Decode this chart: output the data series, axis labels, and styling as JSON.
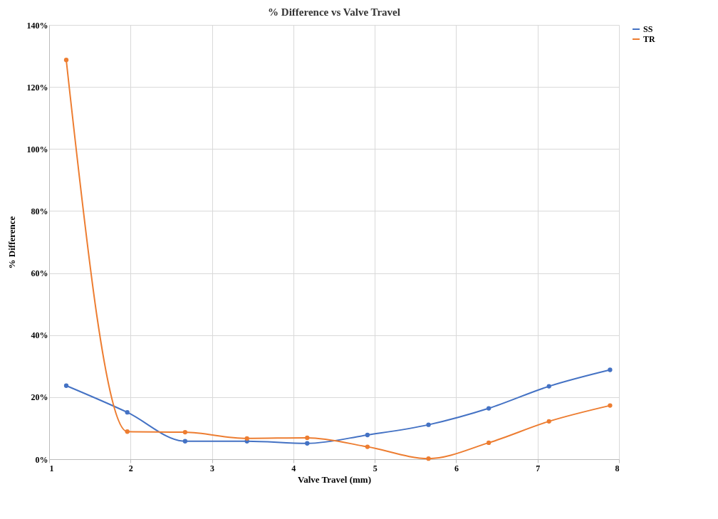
{
  "chart_data": {
    "type": "line",
    "title": "% Difference vs Valve Travel",
    "xlabel": "Valve Travel (mm)",
    "ylabel": "% Difference",
    "x": [
      1.21,
      1.96,
      2.67,
      3.43,
      4.17,
      4.91,
      5.66,
      6.4,
      7.14,
      7.89
    ],
    "series": [
      {
        "name": "SS",
        "color": "#4472c4",
        "values": [
          23.7,
          15.1,
          5.8,
          5.8,
          5.1,
          7.8,
          11.1,
          16.4,
          23.5,
          28.8
        ]
      },
      {
        "name": "TR",
        "color": "#ed7d31",
        "values": [
          128.7,
          8.9,
          8.7,
          6.7,
          6.9,
          4.0,
          0.2,
          5.3,
          12.2,
          17.3
        ]
      }
    ],
    "xlim": [
      1,
      8
    ],
    "xticks": [
      1,
      2,
      3,
      4,
      5,
      6,
      7,
      8
    ],
    "ylim": [
      0,
      140
    ],
    "yticks": [
      {
        "value": 0,
        "label": "0%"
      },
      {
        "value": 20,
        "label": "20%"
      },
      {
        "value": 40,
        "label": "40%"
      },
      {
        "value": 60,
        "label": "60%"
      },
      {
        "value": 80,
        "label": "80%"
      },
      {
        "value": 100,
        "label": "100%"
      },
      {
        "value": 120,
        "label": "120%"
      },
      {
        "value": 140,
        "label": "140%"
      }
    ],
    "grid": true,
    "legend": "right",
    "marker": "circle",
    "line_style": "solid"
  }
}
